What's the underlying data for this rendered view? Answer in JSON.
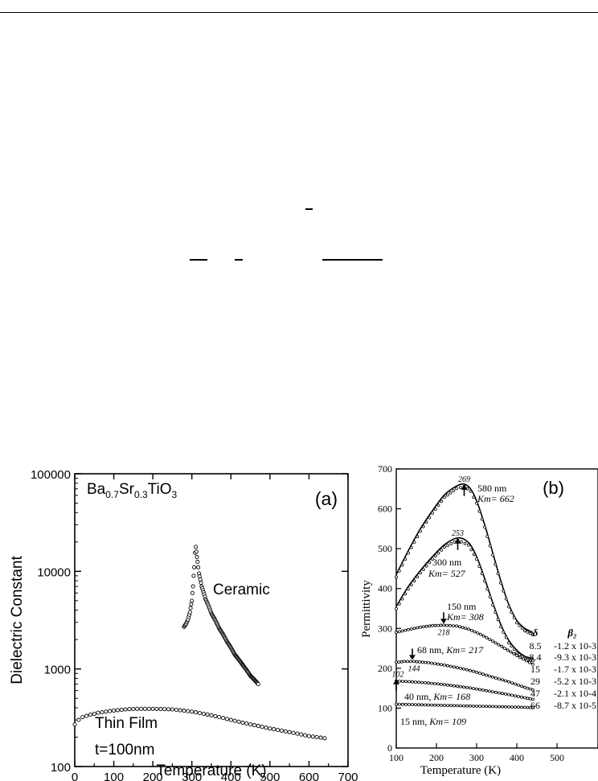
{
  "chart_data": [
    {
      "type": "scatter",
      "panel_label": "(a)",
      "material_label": {
        "base": "Ba",
        "s1": "0.7",
        "mid": "Sr",
        "s2": "0.3",
        "end": "TiO",
        "s3": "3"
      },
      "xlabel": "Temperature (K)",
      "ylabel": "Dielectric Constant",
      "xlim": [
        0,
        700
      ],
      "ylim": [
        100,
        100000
      ],
      "y_scale": "log",
      "x_ticks": [
        "0",
        "100",
        "200",
        "300",
        "400",
        "500",
        "600",
        "700"
      ],
      "y_ticks": [
        "100",
        "1000",
        "10000",
        "100000"
      ],
      "annotations": {
        "ceramic": "Ceramic",
        "thin_film": "Thin Film",
        "thickness": "t=100nm"
      },
      "series": [
        {
          "name": "Ceramic",
          "x": [
            280,
            285,
            290,
            295,
            300,
            303,
            306,
            308,
            310,
            313,
            318,
            325,
            335,
            350,
            370,
            390,
            410,
            430,
            450,
            470
          ],
          "y": [
            2700,
            2900,
            3200,
            3800,
            5000,
            7000,
            11000,
            15500,
            17800,
            14000,
            9500,
            7000,
            5200,
            3700,
            2600,
            1900,
            1400,
            1100,
            850,
            700
          ]
        },
        {
          "name": "Thin Film",
          "x": [
            0,
            10,
            20,
            40,
            60,
            80,
            100,
            130,
            160,
            200,
            250,
            300,
            350,
            400,
            450,
            500,
            550,
            600,
            640
          ],
          "y": [
            270,
            300,
            320,
            340,
            355,
            365,
            375,
            385,
            390,
            390,
            385,
            365,
            335,
            300,
            270,
            245,
            225,
            205,
            195
          ]
        }
      ]
    },
    {
      "type": "scatter",
      "panel_label": "(b)",
      "xlabel": "Temperature (K)",
      "ylabel": "Permittivity",
      "xlim": [
        100,
        600
      ],
      "ylim": [
        0,
        700
      ],
      "x_ticks": [
        "100",
        "200",
        "300",
        "400",
        "500"
      ],
      "y_ticks": [
        "0",
        "100",
        "200",
        "300",
        "400",
        "500",
        "600",
        "700"
      ],
      "table_headers": {
        "delta": "δ",
        "beta": "β₂"
      },
      "series": [
        {
          "thickness_label": "580 nm",
          "km_label": "Km= 662",
          "peak_T": "269",
          "peak_x": 269,
          "peak_y": 662,
          "delta": "8.5",
          "beta": "-1.2 x 10-3",
          "x": [
            100,
            130,
            160,
            190,
            220,
            250,
            269,
            285,
            300,
            320,
            340,
            360,
            380,
            400,
            420,
            440
          ],
          "y": [
            435,
            495,
            550,
            595,
            635,
            657,
            662,
            650,
            620,
            560,
            490,
            420,
            360,
            320,
            300,
            290
          ]
        },
        {
          "thickness_label": "300 nm",
          "km_label": "Km= 527",
          "peak_T": "253",
          "peak_x": 253,
          "peak_y": 527,
          "delta": "8.4",
          "beta": "-9.3 x 10-3",
          "x": [
            100,
            130,
            160,
            190,
            220,
            253,
            280,
            300,
            320,
            340,
            360,
            380,
            400,
            420,
            440
          ],
          "y": [
            355,
            405,
            445,
            480,
            510,
            527,
            515,
            480,
            425,
            365,
            310,
            270,
            245,
            230,
            225
          ]
        },
        {
          "thickness_label": "150 nm",
          "km_label": "Km= 308",
          "peak_T": "218",
          "peak_x": 218,
          "peak_y": 308,
          "delta": "15",
          "beta": "-1.7 x 10-3",
          "x": [
            100,
            130,
            160,
            190,
            218,
            250,
            280,
            310,
            340,
            370,
            400,
            440
          ],
          "y": [
            290,
            297,
            303,
            307,
            308,
            306,
            298,
            285,
            268,
            250,
            232,
            210
          ]
        },
        {
          "thickness_label": "68 nm, ",
          "km_label": "Km= 217",
          "peak_T": "144",
          "peak_x": 144,
          "peak_y": 217,
          "delta": "29",
          "beta": "-5.2 x 10-3",
          "x": [
            100,
            120,
            144,
            180,
            220,
            260,
            300,
            340,
            380,
            420,
            440
          ],
          "y": [
            215,
            217,
            217,
            214,
            208,
            200,
            190,
            178,
            166,
            152,
            146
          ]
        },
        {
          "thickness_label": "40 nm, ",
          "km_label": "Km= 168",
          "peak_T": "102",
          "peak_x": 102,
          "peak_y": 168,
          "delta": "47",
          "beta": "-2.1 x 10-4",
          "x": [
            100,
            140,
            180,
            220,
            260,
            300,
            340,
            380,
            420,
            440
          ],
          "y": [
            168,
            166,
            163,
            159,
            154,
            148,
            141,
            134,
            126,
            122
          ]
        },
        {
          "thickness_label": "15 nm, ",
          "km_label": "Km= 109",
          "delta": "66",
          "beta": "-8.7 x 10-5",
          "x": [
            100,
            140,
            180,
            220,
            260,
            300,
            340,
            380,
            420,
            440
          ],
          "y": [
            110,
            109,
            108,
            107,
            106,
            105,
            104,
            103,
            102,
            101
          ]
        }
      ]
    }
  ]
}
